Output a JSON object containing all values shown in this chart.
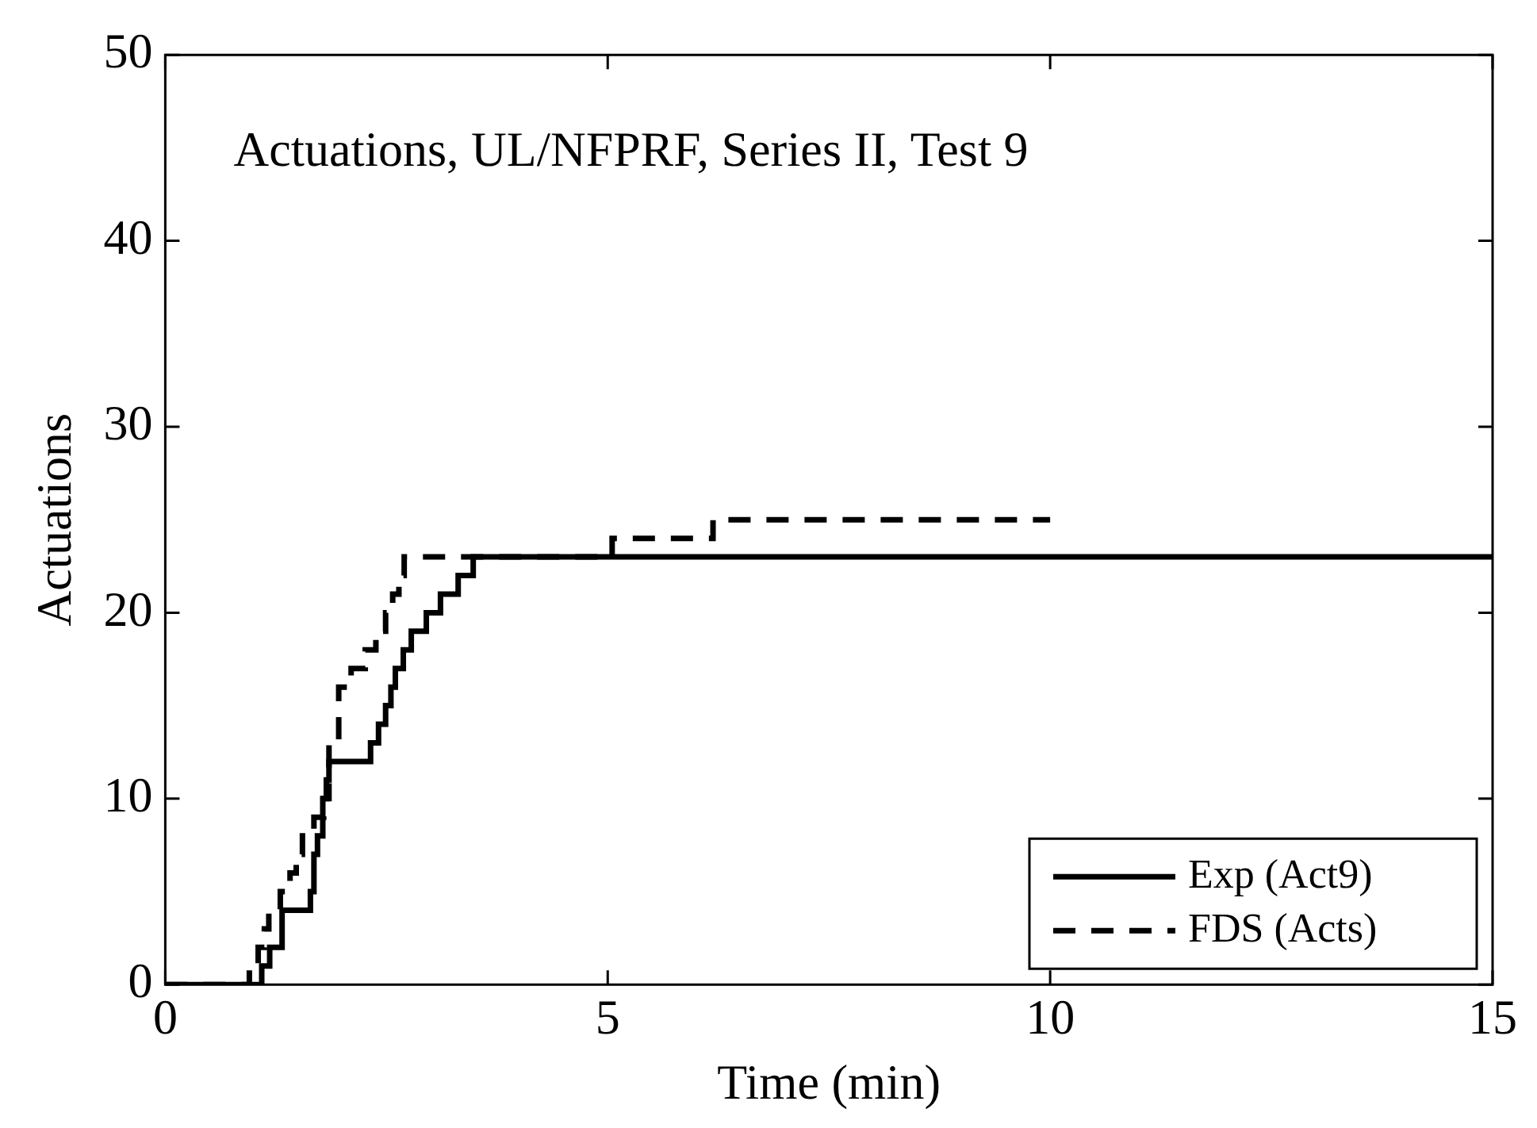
{
  "chart_data": {
    "type": "step",
    "title": "Actuations, UL/NFPRF, Series II, Test 9",
    "xlabel": "Time (min)",
    "ylabel": "Actuations",
    "xlim": [
      0,
      15
    ],
    "xticks": [
      0,
      5,
      10,
      15
    ],
    "ylim": [
      0,
      50
    ],
    "yticks": [
      0,
      10,
      20,
      30,
      40,
      50
    ],
    "grid": false,
    "legend": "bottom right",
    "series": [
      {
        "name": "Exp (Act9)",
        "color": "#000000",
        "line_style": "solid",
        "x": [
          0,
          1.09,
          1.18,
          1.32,
          1.64,
          1.68,
          1.72,
          1.78,
          1.82,
          1.85,
          2.32,
          2.41,
          2.49,
          2.55,
          2.6,
          2.69,
          2.78,
          2.95,
          3.11,
          3.31,
          3.48,
          15
        ],
        "values": [
          0,
          1,
          2,
          4,
          5,
          7,
          8,
          10,
          11,
          12,
          13,
          14,
          15,
          16,
          17,
          18,
          19,
          20,
          21,
          22,
          23,
          23
        ]
      },
      {
        "name": "FDS (Acts)",
        "color": "#000000",
        "line_style": "dashed",
        "x": [
          0,
          0.95,
          1.05,
          1.12,
          1.17,
          1.3,
          1.41,
          1.48,
          1.55,
          1.68,
          1.79,
          1.85,
          1.96,
          2.1,
          2.26,
          2.38,
          2.49,
          2.57,
          2.64,
          2.7,
          5.05,
          6.19,
          10
        ],
        "values": [
          0,
          1,
          2,
          3,
          4,
          5,
          6,
          7,
          8,
          9,
          10,
          13,
          16,
          17,
          18,
          19,
          20,
          21,
          22,
          23,
          24,
          25,
          25
        ]
      }
    ]
  }
}
